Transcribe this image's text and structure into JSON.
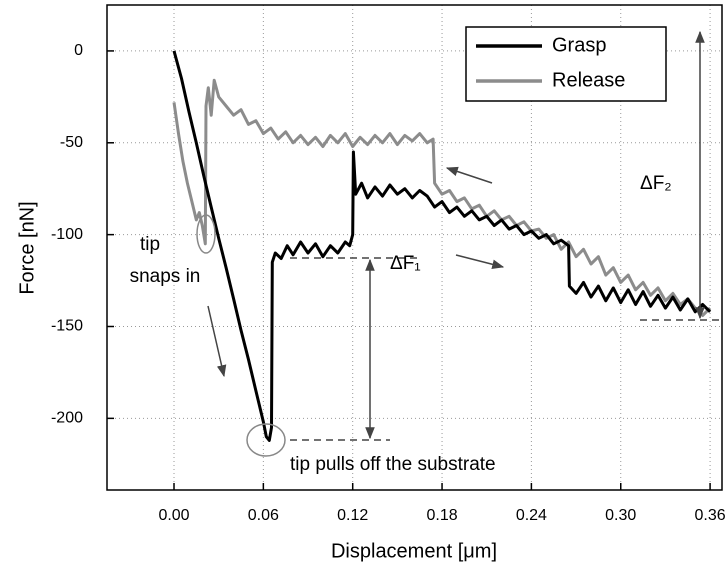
{
  "chart_data": {
    "type": "line",
    "xlabel": "Displacement [μm]",
    "ylabel": "Force [nN]",
    "xlim": [
      -0.045,
      0.368
    ],
    "ylim": [
      -239,
      25
    ],
    "xticks": [
      {
        "value": 0,
        "label": "0.00"
      },
      0.06,
      0.12,
      0.18,
      0.24,
      {
        "value": 0.3,
        "label": "0.30"
      },
      0.36
    ],
    "yticks": [
      0,
      -50,
      -100,
      -150,
      -200
    ],
    "grid": true,
    "legend": "upper right",
    "annotations": [
      "tip",
      "snaps in",
      "tip pulls off the substrate",
      "ΔF₁",
      "ΔF₂"
    ],
    "series": [
      {
        "name": "Grasp",
        "color": "#000000",
        "x": [
          0,
          0.005,
          0.01,
          0.015,
          0.02,
          0.025,
          0.03,
          0.035,
          0.04,
          0.045,
          0.05,
          0.055,
          0.06,
          0.062,
          0.064,
          0.0655,
          0.066,
          0.068,
          0.072,
          0.076,
          0.08,
          0.085,
          0.09,
          0.095,
          0.1,
          0.105,
          0.11,
          0.115,
          0.118,
          0.12,
          0.1205,
          0.122,
          0.126,
          0.13,
          0.135,
          0.14,
          0.145,
          0.15,
          0.155,
          0.16,
          0.165,
          0.17,
          0.175,
          0.18,
          0.185,
          0.19,
          0.195,
          0.2,
          0.205,
          0.21,
          0.215,
          0.22,
          0.225,
          0.23,
          0.235,
          0.24,
          0.245,
          0.25,
          0.255,
          0.26,
          0.265,
          0.2655,
          0.27,
          0.275,
          0.28,
          0.285,
          0.29,
          0.295,
          0.3,
          0.305,
          0.31,
          0.315,
          0.32,
          0.325,
          0.33,
          0.335,
          0.34,
          0.345,
          0.35,
          0.355,
          0.36
        ],
        "values": [
          0,
          -15,
          -33,
          -50,
          -68,
          -85,
          -102,
          -118,
          -135,
          -152,
          -168,
          -185,
          -202,
          -210,
          -212,
          -205,
          -115,
          -110,
          -113,
          -106,
          -111,
          -104,
          -110,
          -105,
          -112,
          -106,
          -110,
          -104,
          -106,
          -100,
          -55,
          -78,
          -72,
          -80,
          -74,
          -79,
          -73,
          -78,
          -75,
          -80,
          -76,
          -79,
          -85,
          -82,
          -88,
          -85,
          -90,
          -87,
          -92,
          -90,
          -95,
          -92,
          -97,
          -95,
          -100,
          -98,
          -102,
          -100,
          -105,
          -103,
          -106,
          -128,
          -132,
          -126,
          -134,
          -128,
          -136,
          -129,
          -137,
          -130,
          -138,
          -131,
          -139,
          -133,
          -140,
          -134,
          -141,
          -135,
          -142,
          -138,
          -142
        ]
      },
      {
        "name": "Release",
        "color": "#8c8c8c",
        "x": [
          0,
          0.003,
          0.006,
          0.009,
          0.012,
          0.015,
          0.017,
          0.019,
          0.021,
          0.0215,
          0.023,
          0.025,
          0.027,
          0.03,
          0.035,
          0.04,
          0.045,
          0.05,
          0.055,
          0.06,
          0.065,
          0.07,
          0.075,
          0.08,
          0.085,
          0.09,
          0.095,
          0.1,
          0.105,
          0.11,
          0.115,
          0.12,
          0.125,
          0.13,
          0.135,
          0.14,
          0.145,
          0.15,
          0.155,
          0.16,
          0.165,
          0.17,
          0.174,
          0.175,
          0.18,
          0.185,
          0.19,
          0.195,
          0.2,
          0.205,
          0.21,
          0.215,
          0.22,
          0.225,
          0.23,
          0.235,
          0.24,
          0.245,
          0.25,
          0.255,
          0.26,
          0.265,
          0.27,
          0.275,
          0.28,
          0.285,
          0.29,
          0.295,
          0.3,
          0.305,
          0.31,
          0.315,
          0.32,
          0.325,
          0.33,
          0.335,
          0.34,
          0.345,
          0.35,
          0.355,
          0.36
        ],
        "values": [
          -28,
          -45,
          -60,
          -72,
          -82,
          -92,
          -88,
          -95,
          -105,
          -30,
          -20,
          -35,
          -16,
          -25,
          -30,
          -35,
          -32,
          -40,
          -38,
          -45,
          -42,
          -48,
          -44,
          -50,
          -46,
          -51,
          -47,
          -52,
          -46,
          -50,
          -45,
          -52,
          -47,
          -51,
          -46,
          -50,
          -45,
          -51,
          -46,
          -49,
          -45,
          -50,
          -48,
          -72,
          -78,
          -76,
          -82,
          -80,
          -86,
          -84,
          -90,
          -87,
          -92,
          -90,
          -95,
          -93,
          -98,
          -97,
          -102,
          -100,
          -108,
          -104,
          -112,
          -108,
          -116,
          -112,
          -122,
          -118,
          -126,
          -122,
          -130,
          -126,
          -133,
          -129,
          -136,
          -132,
          -138,
          -135,
          -140,
          -144,
          -140
        ]
      }
    ]
  }
}
